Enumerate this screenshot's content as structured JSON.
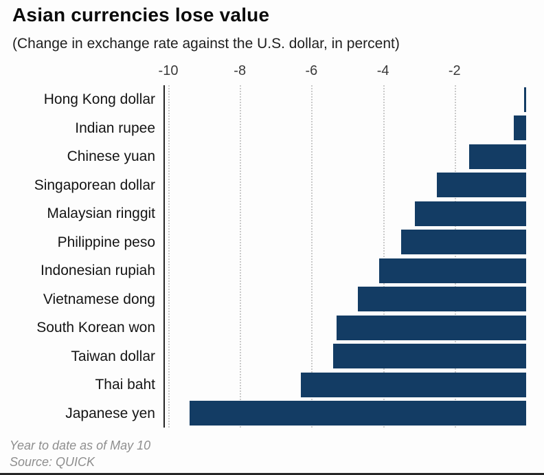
{
  "header": {
    "title": "Asian currencies lose value",
    "subtitle": "(Change in exchange rate against the U.S. dollar, in percent)"
  },
  "footer": {
    "note": "Year to date as of May 10",
    "source": "Source: QUICK"
  },
  "chart_data": {
    "type": "bar",
    "orientation": "horizontal",
    "title": "Asian currencies lose value",
    "subtitle": "(Change in exchange rate against the U.S. dollar, in percent)",
    "categories": [
      "Hong Kong dollar",
      "Indian rupee",
      "Chinese yuan",
      "Singaporean dollar",
      "Malaysian ringgit",
      "Philippine peso",
      "Indonesian rupiah",
      "Vietnamese dong",
      "South Korean won",
      "Taiwan dollar",
      "Thai baht",
      "Japanese yen"
    ],
    "values": [
      -0.05,
      -0.35,
      -1.6,
      -2.5,
      -3.1,
      -3.5,
      -4.1,
      -4.7,
      -5.3,
      -5.4,
      -6.3,
      -9.4
    ],
    "x_ticks": [
      "-10",
      "-8",
      "-6",
      "-4",
      "-2"
    ],
    "x_tick_values": [
      -10,
      -8,
      -6,
      -4,
      -2
    ],
    "xlim": [
      -10.1,
      0
    ],
    "xlabel": "",
    "ylabel": "",
    "grid": "dotted-vertical",
    "legend": "none",
    "bar_color": "#133c64",
    "axis_color": "#222222",
    "note": "Year to date as of May 10",
    "source": "Source: QUICK"
  }
}
